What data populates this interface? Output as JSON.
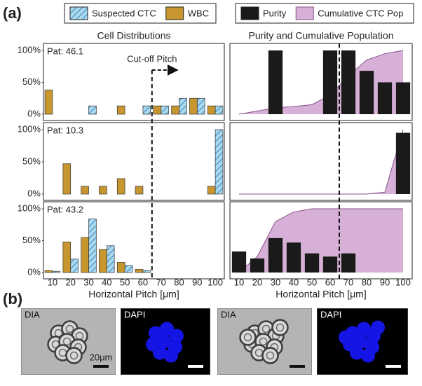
{
  "panel_labels": [
    "(a)",
    "(b)"
  ],
  "chart_data": [
    {
      "type": "grouped_bar",
      "title": "Cell Distributions",
      "xlabel": "Horizontal Pitch [μm]",
      "categories": [
        10,
        20,
        30,
        40,
        50,
        60,
        70,
        80,
        90,
        100
      ],
      "ylim": [
        0,
        100
      ],
      "yticks": [
        {
          "value": 0,
          "label": "0%"
        },
        {
          "value": 50,
          "label": "50%"
        },
        {
          "value": 100,
          "label": "100%"
        }
      ],
      "cutoff": 65,
      "cutoff_label": "Cut-off Pitch",
      "panels": [
        {
          "annotation": "Pat: 46.1"
        },
        {
          "annotation": "Pat: 10.3"
        },
        {
          "annotation": "Pat: 43.2"
        }
      ],
      "series": [
        {
          "name": "Suspected CTC",
          "color": "#a9d8ef",
          "hatch": "#3a86b4",
          "values": [
            [
              0,
              0,
              13,
              0,
              0,
              13,
              13,
              25,
              25,
              13
            ],
            [
              0,
              0,
              0,
              0,
              0,
              0,
              0,
              0,
              0,
              100
            ],
            [
              2,
              21,
              84,
              42,
              11,
              3,
              0,
              0,
              0,
              0
            ]
          ]
        },
        {
          "name": "WBC",
          "color": "#c8962e",
          "values": [
            [
              38,
              0,
              0,
              0,
              13,
              0,
              13,
              13,
              25,
              13
            ],
            [
              0,
              47,
              12,
              12,
              24,
              12,
              0,
              0,
              0,
              12
            ],
            [
              3,
              48,
              55,
              36,
              16,
              5,
              0,
              0,
              0,
              0
            ]
          ]
        }
      ]
    },
    {
      "type": "bar_area",
      "title": "Purity and Cumulative Population",
      "xlabel": "Horizontal Pitch [μm]",
      "categories": [
        10,
        20,
        30,
        40,
        50,
        60,
        70,
        80,
        90,
        100
      ],
      "ylim": [
        0,
        100
      ],
      "cutoff": 65,
      "series": [
        {
          "name": "Purity",
          "color": "#1a1a1a",
          "kind": "bar",
          "values": [
            [
              0,
              0,
              100,
              0,
              0,
              100,
              100,
              68,
              50,
              50
            ],
            [
              0,
              0,
              0,
              0,
              0,
              0,
              0,
              0,
              0,
              95
            ],
            [
              33,
              22,
              54,
              47,
              30,
              25,
              30,
              0,
              0,
              0
            ]
          ]
        },
        {
          "name": "Cumulative CTC Pop",
          "color": "#d6b0d6",
          "line": "#8a508a",
          "kind": "area",
          "values": [
            [
              0,
              5,
              10,
              12,
              15,
              30,
              60,
              85,
              95,
              100
            ],
            [
              0,
              0,
              0,
              0,
              0,
              0,
              0,
              0,
              3,
              100
            ],
            [
              0,
              25,
              80,
              95,
              100,
              100,
              100,
              100,
              100,
              100
            ]
          ]
        }
      ]
    }
  ],
  "images": [
    {
      "label": "DIA",
      "scale": "20μm"
    },
    {
      "label": "DAPI"
    },
    {
      "label": "DIA"
    },
    {
      "label": "DAPI"
    }
  ]
}
